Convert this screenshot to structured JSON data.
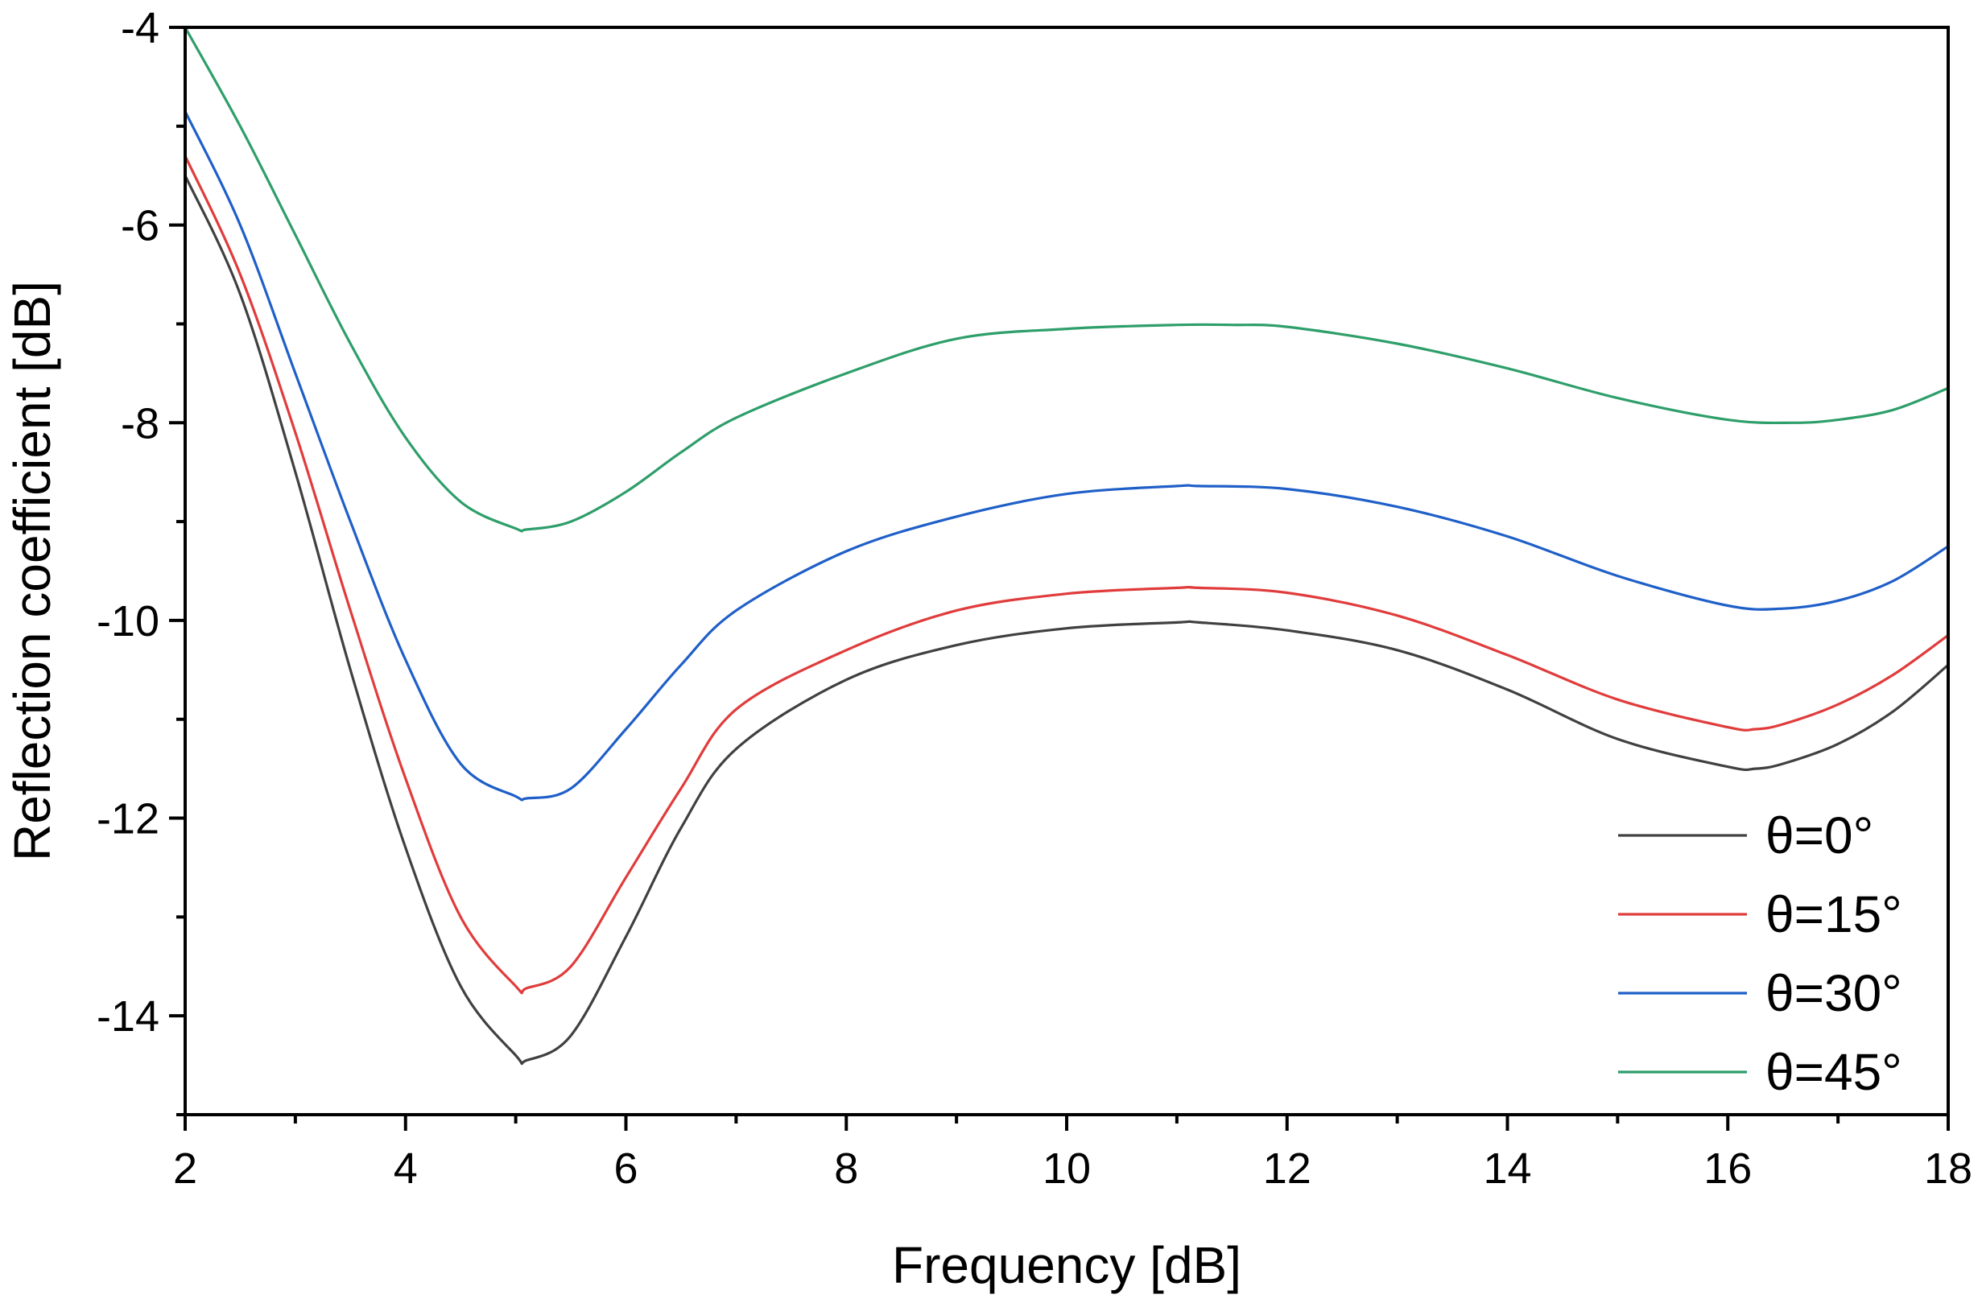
{
  "chart_data": {
    "type": "line",
    "title": "",
    "xlabel": "Frequency [dB]",
    "ylabel": "Reflection coefficient [dB]",
    "xlim": [
      2,
      18
    ],
    "ylim": [
      -15,
      -4
    ],
    "xticks": [
      2,
      4,
      6,
      8,
      10,
      12,
      14,
      16,
      18
    ],
    "yticks": [
      -14,
      -12,
      -10,
      -8,
      -6,
      -4
    ],
    "grid": false,
    "legend_position": "bottom-right",
    "series": [
      {
        "name": "θ=0°",
        "color": "#404040",
        "x": [
          2,
          2.5,
          3,
          3.5,
          4,
          4.5,
          5,
          5.1,
          5.5,
          6,
          6.5,
          7,
          8,
          9,
          10,
          11,
          11.2,
          12,
          13,
          14,
          15,
          16,
          16.25,
          16.5,
          17,
          17.5,
          18
        ],
        "y": [
          -5.5,
          -6.7,
          -8.5,
          -10.5,
          -12.3,
          -13.7,
          -14.4,
          -14.45,
          -14.2,
          -13.2,
          -12.1,
          -11.3,
          -10.6,
          -10.25,
          -10.08,
          -10.02,
          -10.02,
          -10.1,
          -10.3,
          -10.7,
          -11.2,
          -11.48,
          -11.5,
          -11.45,
          -11.25,
          -10.92,
          -10.45
        ]
      },
      {
        "name": "θ=15°",
        "color": "#e03c3c",
        "x": [
          2,
          2.5,
          3,
          3.5,
          4,
          4.5,
          5,
          5.1,
          5.5,
          6,
          6.5,
          7,
          8,
          9,
          10,
          11,
          11.2,
          12,
          13,
          14,
          15,
          16,
          16.25,
          16.5,
          17,
          17.5,
          18
        ],
        "y": [
          -5.3,
          -6.5,
          -8.1,
          -9.9,
          -11.6,
          -13.0,
          -13.7,
          -13.72,
          -13.5,
          -12.6,
          -11.7,
          -10.9,
          -10.3,
          -9.9,
          -9.73,
          -9.67,
          -9.67,
          -9.72,
          -9.95,
          -10.35,
          -10.8,
          -11.08,
          -11.1,
          -11.05,
          -10.85,
          -10.55,
          -10.15
        ]
      },
      {
        "name": "θ=30°",
        "color": "#1f5fc8",
        "x": [
          2,
          2.5,
          3,
          3.5,
          4,
          4.5,
          5,
          5.1,
          5.5,
          6,
          6.5,
          7,
          8,
          9,
          10,
          11,
          11.2,
          12,
          13,
          14,
          15,
          16,
          16.5,
          17,
          17.5,
          18
        ],
        "y": [
          -4.85,
          -6.0,
          -7.5,
          -9.0,
          -10.4,
          -11.45,
          -11.78,
          -11.8,
          -11.7,
          -11.1,
          -10.45,
          -9.9,
          -9.3,
          -8.95,
          -8.72,
          -8.64,
          -8.64,
          -8.67,
          -8.85,
          -9.15,
          -9.55,
          -9.85,
          -9.88,
          -9.8,
          -9.6,
          -9.25
        ]
      },
      {
        "name": "θ=45°",
        "color": "#2e9e6a",
        "x": [
          2,
          2.5,
          3,
          3.5,
          4,
          4.5,
          5,
          5.1,
          5.5,
          6,
          6.5,
          7,
          8,
          9,
          10,
          11,
          11.5,
          12,
          13,
          14,
          15,
          16,
          16.6,
          17,
          17.5,
          18
        ],
        "y": [
          -4.0,
          -5.0,
          -6.1,
          -7.2,
          -8.15,
          -8.8,
          -9.07,
          -9.08,
          -9.0,
          -8.7,
          -8.3,
          -7.95,
          -7.5,
          -7.15,
          -7.05,
          -7.01,
          -7.01,
          -7.03,
          -7.2,
          -7.45,
          -7.75,
          -7.97,
          -8.0,
          -7.97,
          -7.87,
          -7.65
        ]
      }
    ]
  }
}
